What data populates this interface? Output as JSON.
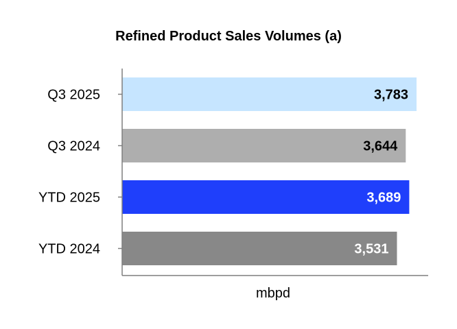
{
  "chart_data": {
    "type": "bar",
    "orientation": "horizontal",
    "title": "Refined Product Sales Volumes (a)",
    "xlabel": "mbpd",
    "ylabel": "",
    "categories": [
      "Q3 2025",
      "Q3 2024",
      "YTD 2025",
      "YTD 2024"
    ],
    "values": [
      3783,
      3644,
      3689,
      3531
    ],
    "value_labels": [
      "3,783",
      "3,644",
      "3,689",
      "3,531"
    ],
    "bar_colors": [
      "#c6e5ff",
      "#aeaeae",
      "#1f3ffb",
      "#888888"
    ],
    "label_colors": [
      "#000000",
      "#000000",
      "#ffffff",
      "#ffffff"
    ],
    "axis_color": "#7f7f7f",
    "xlim": [
      0,
      3800
    ],
    "grid": false,
    "legend": "none"
  }
}
